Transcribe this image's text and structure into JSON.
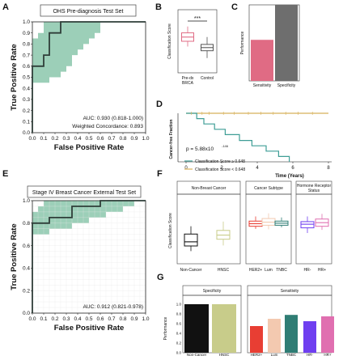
{
  "colors": {
    "ci_band": "#9ccfb8",
    "curve": "#2f3e39",
    "preca": "#e06b84",
    "control": "#8a8a8a",
    "teal": "#3f9e96",
    "gold": "#d8b15a",
    "black": "#111111",
    "olive": "#c8cc8a",
    "her2": "#e83e33",
    "lum": "#f3c9b0",
    "tnbc": "#2f7d74",
    "hrneg": "#6f3ff0",
    "hrpos": "#e06fb0"
  },
  "panelA": {
    "letter": "A",
    "title": "OHS Pre-diagnosis Test Set",
    "xlabel": "False Positive Rate",
    "ylabel": "True Positive Rate",
    "auc": "AUC: 0.930 (0.818-1.000)",
    "concordance": "Weighted Concordance: 0.893",
    "x_ticks": [
      "0.0",
      "0.1",
      "0.2",
      "0.3",
      "0.4",
      "0.5",
      "0.6",
      "0.7",
      "0.8",
      "0.9",
      "1.0"
    ],
    "y_ticks": [
      "0.0",
      "0.1",
      "0.2",
      "0.3",
      "0.4",
      "0.5",
      "0.6",
      "0.7",
      "0.8",
      "0.9",
      "1.0"
    ]
  },
  "panelB": {
    "letter": "B",
    "ylabel": "Classification Score",
    "sig": "***",
    "categories": [
      "Pre-dx BRCA",
      "Control"
    ],
    "cat_labels": [
      [
        "Pre-dx",
        "BRCA"
      ],
      [
        "Control"
      ]
    ],
    "y_range": [
      0.3,
      0.9
    ]
  },
  "panelC": {
    "letter": "C",
    "ylabel": "Performance",
    "categories": [
      "Sensitivity",
      "Specificity"
    ],
    "values": [
      0.54,
      1.0
    ]
  },
  "panelD": {
    "letter": "D",
    "ylabel": "Cancer-free Fraction",
    "xlabel": "Time (Years)",
    "p_text": "p = 5.88x10",
    "p_exp": "-146",
    "x_ticks": [
      "0",
      "2",
      "4",
      "6",
      "8"
    ],
    "legend": [
      "Classification Score ≥ 0.648",
      "Classification Score < 0.648"
    ]
  },
  "panelE": {
    "letter": "E",
    "title": "Stage IV Breast Cancer External Test Set",
    "xlabel": "False Positive Rate",
    "ylabel": "True Positive Rate",
    "auc": "AUC: 0.912 (0.821-0.978)",
    "x_ticks": [
      "0.0",
      "0.1",
      "0.2",
      "0.3",
      "0.4",
      "0.5",
      "0.6",
      "0.7",
      "0.8",
      "0.9",
      "1.0"
    ],
    "y_ticks": [
      "0.0",
      "0.2",
      "0.4",
      "0.6",
      "0.8",
      "1.0"
    ]
  },
  "panelF": {
    "letter": "F",
    "ylabel": "Classification Score",
    "facets": [
      {
        "title": "Non-Breast Cancer",
        "categories": [
          "Non-Cancer",
          "HNSC"
        ]
      },
      {
        "title": "Cancer Subtype",
        "categories": [
          "HER2+",
          "Lum",
          "TNBC"
        ]
      },
      {
        "title": "Hormone Receptor Status",
        "title_lines": [
          "Hormone Receptor",
          "Status"
        ],
        "categories": [
          "HR-",
          "HR+"
        ]
      }
    ]
  },
  "panelG": {
    "letter": "G",
    "ylabel": "Performance",
    "y_ticks": [
      "0.0",
      "0.2",
      "0.4",
      "0.6",
      "0.8",
      "1.0"
    ],
    "facets": [
      {
        "title": "Specificity",
        "categories": [
          "Non-Cancer",
          "HNSC"
        ],
        "values": [
          1.0,
          1.0
        ]
      },
      {
        "title": "Sensitivity",
        "categories": [
          "HER2+",
          "Lum",
          "TNBC",
          "HR-",
          "HR+"
        ],
        "values": [
          0.55,
          0.7,
          0.78,
          0.65,
          0.75
        ]
      }
    ]
  },
  "chart_data": [
    {
      "panel": "A",
      "type": "line",
      "title": "OHS Pre-diagnosis Test Set",
      "xlabel": "False Positive Rate",
      "ylabel": "True Positive Rate",
      "xlim": [
        0,
        1
      ],
      "ylim": [
        0,
        1
      ],
      "x": [
        0.0,
        0.0,
        0.1,
        0.1,
        0.15,
        0.15,
        0.25,
        0.25,
        1.0
      ],
      "y": [
        0.0,
        0.6,
        0.6,
        0.7,
        0.7,
        0.9,
        0.9,
        1.0,
        1.0
      ],
      "ci_upper": [
        [
          0.0,
          0.85
        ],
        [
          0.05,
          0.9
        ],
        [
          0.1,
          1.0
        ],
        [
          1.0,
          1.0
        ]
      ],
      "ci_lower": [
        [
          0.0,
          0.45
        ],
        [
          0.1,
          0.45
        ],
        [
          0.15,
          0.5
        ],
        [
          0.25,
          0.55
        ],
        [
          0.3,
          0.6
        ],
        [
          0.35,
          0.7
        ],
        [
          0.4,
          0.75
        ],
        [
          0.45,
          0.8
        ],
        [
          0.5,
          0.85
        ],
        [
          0.55,
          0.9
        ],
        [
          0.6,
          0.95
        ],
        [
          0.6,
          1.0
        ]
      ],
      "annotations": [
        "AUC: 0.930 (0.818-1.000)",
        "Weighted Concordance: 0.893"
      ]
    },
    {
      "panel": "B",
      "type": "box",
      "ylabel": "Classification Score",
      "categories": [
        "Pre-dx BRCA",
        "Control"
      ],
      "boxes": [
        {
          "whisker_low": 0.55,
          "q1": 0.6,
          "median": 0.64,
          "q3": 0.68,
          "whisker_high": 0.74
        },
        {
          "whisker_low": 0.44,
          "q1": 0.51,
          "median": 0.54,
          "q3": 0.57,
          "whisker_high": 0.64
        }
      ],
      "significance": "***"
    },
    {
      "panel": "C",
      "type": "bar",
      "ylabel": "Performance",
      "categories": [
        "Sensitivity",
        "Specificity"
      ],
      "values": [
        0.54,
        1.0
      ]
    },
    {
      "panel": "D",
      "type": "line",
      "xlabel": "Time (Years)",
      "ylabel": "Cancer-free Fraction",
      "xlim": [
        0,
        8
      ],
      "ylim": [
        0,
        1
      ],
      "series": [
        {
          "name": "Classification Score ≥ 0.648",
          "x": [
            0,
            0.6,
            0.6,
            1.0,
            1.0,
            1.6,
            1.6,
            2.2,
            2.2,
            3.0,
            3.0,
            3.7,
            3.7,
            4.5,
            4.5,
            5.2,
            5.2,
            5.8,
            5.8
          ],
          "y": [
            1.0,
            1.0,
            0.89,
            0.89,
            0.78,
            0.78,
            0.67,
            0.67,
            0.56,
            0.56,
            0.44,
            0.44,
            0.33,
            0.33,
            0.22,
            0.22,
            0.11,
            0.11,
            0.0
          ]
        },
        {
          "name": "Classification Score < 0.648",
          "x": [
            0,
            8
          ],
          "y": [
            1.0,
            1.0
          ]
        }
      ],
      "annotations": [
        "p = 5.88x10^-146"
      ]
    },
    {
      "panel": "E",
      "type": "line",
      "title": "Stage IV Breast Cancer External Test Set",
      "xlabel": "False Positive Rate",
      "ylabel": "True Positive Rate",
      "xlim": [
        0,
        1
      ],
      "ylim": [
        0,
        1
      ],
      "x": [
        0.0,
        0.0,
        0.15,
        0.15,
        0.35,
        0.35,
        0.6,
        0.6,
        1.0
      ],
      "y": [
        0.0,
        0.8,
        0.8,
        0.85,
        0.85,
        0.95,
        0.95,
        1.0,
        1.0
      ],
      "annotations": [
        "AUC: 0.912 (0.821-0.978)"
      ]
    },
    {
      "panel": "F",
      "type": "box",
      "ylabel": "Classification Score",
      "facets": [
        "Non-Breast Cancer",
        "Cancer Subtype",
        "Hormone Receptor Status"
      ],
      "categories": [
        "Non-Cancer",
        "HNSC",
        "HER2+",
        "Lum",
        "TNBC",
        "HR-",
        "HR+"
      ],
      "boxes": [
        {
          "whisker_low": 0.15,
          "q1": 0.25,
          "median": 0.33,
          "q3": 0.48,
          "whisker_high": 0.63
        },
        {
          "whisker_low": 0.26,
          "q1": 0.38,
          "median": 0.46,
          "q3": 0.55,
          "whisker_high": 0.72
        },
        {
          "whisker_low": 0.58,
          "q1": 0.63,
          "median": 0.68,
          "q3": 0.73,
          "whisker_high": 0.82
        },
        {
          "whisker_low": 0.57,
          "q1": 0.65,
          "median": 0.71,
          "q3": 0.78,
          "whisker_high": 0.88
        },
        {
          "whisker_low": 0.61,
          "q1": 0.65,
          "median": 0.69,
          "q3": 0.73,
          "whisker_high": 0.8
        },
        {
          "whisker_low": 0.5,
          "q1": 0.6,
          "median": 0.67,
          "q3": 0.72,
          "whisker_high": 0.82
        },
        {
          "whisker_low": 0.56,
          "q1": 0.63,
          "median": 0.7,
          "q3": 0.77,
          "whisker_high": 0.87
        }
      ]
    },
    {
      "panel": "G",
      "type": "bar",
      "ylabel": "Performance",
      "facets": [
        "Specificity",
        "Sensitivity"
      ],
      "categories": [
        "Non-Cancer",
        "HNSC",
        "HER2+",
        "Lum",
        "TNBC",
        "HR-",
        "HR+"
      ],
      "values": [
        1.0,
        1.0,
        0.55,
        0.7,
        0.78,
        0.65,
        0.75
      ],
      "ylim": [
        0,
        1
      ]
    }
  ]
}
